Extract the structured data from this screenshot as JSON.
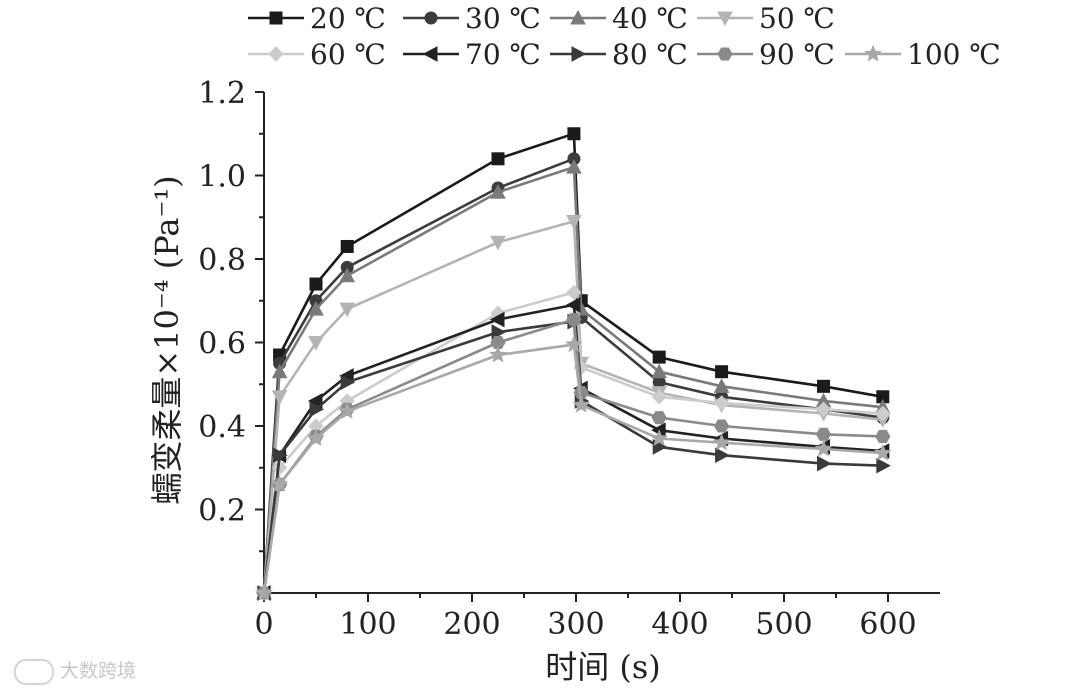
{
  "watermark": "大数跨境",
  "chart_data": {
    "type": "line",
    "title": "",
    "xlabel": "时间 (s)",
    "ylabel": "蠕变柔量×10⁻⁴ (Pa⁻¹)",
    "xlim": [
      0,
      650
    ],
    "ylim": [
      0,
      1.2
    ],
    "xticks": [
      0,
      100,
      200,
      300,
      400,
      500,
      600
    ],
    "yticks": [
      0.2,
      0.4,
      0.6,
      0.8,
      1.0,
      1.2
    ],
    "ytick_labels": [
      "0.2",
      "0.4",
      "0.6",
      "0.8",
      "1.0",
      "1.2"
    ],
    "grid": false,
    "legend_position": "top",
    "series": [
      {
        "name": "20 ℃",
        "marker": "square",
        "color": "#1a1a1a",
        "x": [
          0,
          15,
          50,
          80,
          225,
          298,
          305,
          380,
          440,
          538,
          595
        ],
        "y": [
          0,
          0.57,
          0.74,
          0.83,
          1.04,
          1.1,
          0.7,
          0.565,
          0.53,
          0.495,
          0.47
        ]
      },
      {
        "name": "30 ℃",
        "marker": "circle",
        "color": "#3c3c3c",
        "x": [
          0,
          15,
          50,
          80,
          225,
          298,
          305,
          380,
          440,
          538,
          595
        ],
        "y": [
          0,
          0.55,
          0.7,
          0.78,
          0.97,
          1.04,
          0.66,
          0.505,
          0.47,
          0.44,
          0.42
        ]
      },
      {
        "name": "40 ℃",
        "marker": "triangle-up",
        "color": "#7a7a7a",
        "x": [
          0,
          15,
          50,
          80,
          225,
          298,
          305,
          380,
          440,
          538,
          595
        ],
        "y": [
          0,
          0.53,
          0.68,
          0.76,
          0.96,
          1.02,
          0.68,
          0.53,
          0.495,
          0.46,
          0.445
        ]
      },
      {
        "name": "50 ℃",
        "marker": "triangle-down",
        "color": "#b4b4b4",
        "x": [
          0,
          15,
          50,
          80,
          225,
          298,
          305,
          380,
          440,
          538,
          595
        ],
        "y": [
          0,
          0.47,
          0.6,
          0.68,
          0.84,
          0.89,
          0.55,
          0.48,
          0.45,
          0.43,
          0.415
        ]
      },
      {
        "name": "60 ℃",
        "marker": "diamond",
        "color": "#cccccc",
        "x": [
          0,
          15,
          50,
          80,
          225,
          298,
          305,
          380,
          440,
          538,
          595
        ],
        "y": [
          0,
          0.3,
          0.4,
          0.46,
          0.67,
          0.72,
          0.54,
          0.47,
          0.455,
          0.44,
          0.43
        ]
      },
      {
        "name": "70 ℃",
        "marker": "triangle-left",
        "color": "#222222",
        "x": [
          0,
          15,
          50,
          80,
          225,
          298,
          305,
          380,
          440,
          538,
          595
        ],
        "y": [
          0,
          0.33,
          0.46,
          0.52,
          0.655,
          0.69,
          0.49,
          0.39,
          0.37,
          0.35,
          0.34
        ]
      },
      {
        "name": "80 ℃",
        "marker": "triangle-right",
        "color": "#3a3a3a",
        "x": [
          0,
          15,
          50,
          80,
          225,
          298,
          305,
          380,
          440,
          538,
          595
        ],
        "y": [
          0,
          0.33,
          0.44,
          0.505,
          0.625,
          0.65,
          0.46,
          0.35,
          0.33,
          0.31,
          0.305
        ]
      },
      {
        "name": "90 ℃",
        "marker": "hexagon",
        "color": "#8a8a8a",
        "x": [
          0,
          15,
          50,
          80,
          225,
          298,
          305,
          380,
          440,
          538,
          595
        ],
        "y": [
          0,
          0.26,
          0.375,
          0.44,
          0.6,
          0.655,
          0.48,
          0.42,
          0.4,
          0.38,
          0.375
        ]
      },
      {
        "name": "100 ℃",
        "marker": "star",
        "color": "#a8a8a8",
        "x": [
          0,
          15,
          50,
          80,
          225,
          298,
          305,
          380,
          440,
          538,
          595
        ],
        "y": [
          0,
          0.26,
          0.37,
          0.435,
          0.57,
          0.595,
          0.45,
          0.37,
          0.36,
          0.345,
          0.335
        ]
      }
    ]
  }
}
